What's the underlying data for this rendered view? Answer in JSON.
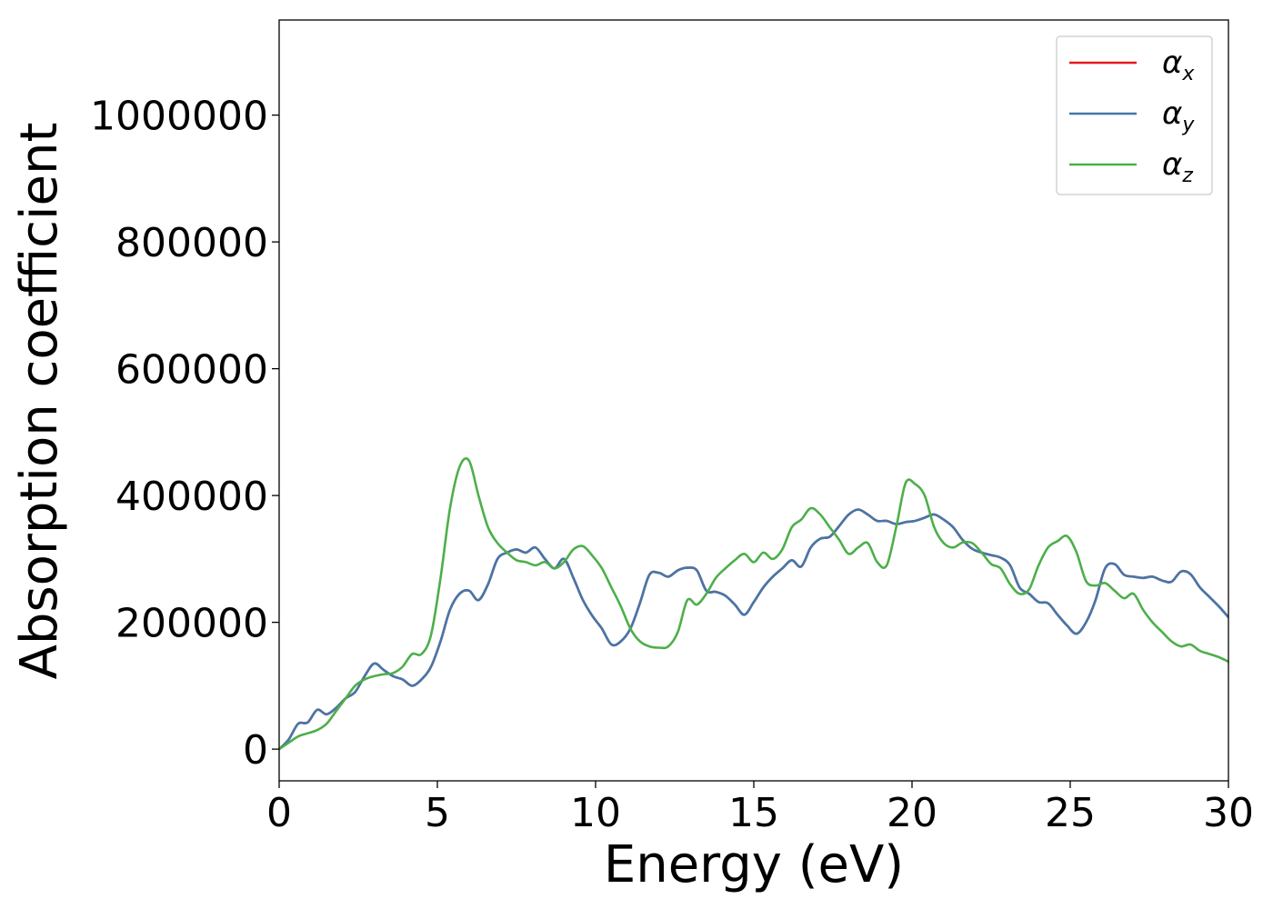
{
  "chart_data": {
    "type": "line",
    "title": "",
    "xlabel": "Energy (eV)",
    "ylabel": "Absorption coefficient",
    "xlim": [
      0,
      30
    ],
    "ylim": [
      -50000,
      1150000
    ],
    "xticks": [
      0,
      5,
      10,
      15,
      20,
      25,
      30
    ],
    "xtick_labels": [
      "0",
      "5",
      "10",
      "15",
      "20",
      "25",
      "30"
    ],
    "yticks": [
      0,
      200000,
      400000,
      600000,
      800000,
      1000000
    ],
    "ytick_labels": [
      "0",
      "200000",
      "400000",
      "600000",
      "800000",
      "1000000"
    ],
    "grid": false,
    "legend_position": "top-right",
    "series": [
      {
        "name": "α_x",
        "label_base": "α",
        "label_sub": "x",
        "color": "#e41a1c",
        "x": [
          0,
          0.3,
          0.6,
          0.9,
          1.2,
          1.5,
          1.8,
          2.1,
          2.4,
          2.7,
          3.0,
          3.3,
          3.6,
          3.9,
          4.2,
          4.5,
          4.8,
          5.1,
          5.4,
          5.7,
          6.0,
          6.3,
          6.6,
          6.9,
          7.2,
          7.5,
          7.8,
          8.1,
          8.4,
          8.7,
          9.0,
          9.3,
          9.6,
          9.9,
          10.2,
          10.5,
          10.8,
          11.1,
          11.4,
          11.7,
          12.0,
          12.3,
          12.6,
          12.9,
          13.2,
          13.5,
          13.8,
          14.1,
          14.4,
          14.7,
          15.0,
          15.3,
          15.6,
          15.9,
          16.2,
          16.5,
          16.8,
          17.1,
          17.4,
          17.7,
          18.0,
          18.3,
          18.6,
          18.9,
          19.2,
          19.5,
          19.8,
          20.1,
          20.4,
          20.7,
          21.0,
          21.3,
          21.6,
          21.9,
          22.2,
          22.5,
          22.8,
          23.1,
          23.4,
          23.7,
          24.0,
          24.3,
          24.6,
          24.9,
          25.2,
          25.5,
          25.8,
          26.1,
          26.4,
          26.7,
          27.0,
          27.3,
          27.6,
          27.9,
          28.2,
          28.5,
          28.8,
          29.1,
          29.4,
          29.7,
          30.0
        ],
        "values": [
          0,
          15000,
          40000,
          42000,
          62000,
          55000,
          65000,
          80000,
          90000,
          115000,
          135000,
          125000,
          115000,
          110000,
          100000,
          110000,
          130000,
          170000,
          220000,
          245000,
          250000,
          235000,
          260000,
          300000,
          310000,
          315000,
          310000,
          318000,
          300000,
          285000,
          300000,
          270000,
          235000,
          210000,
          190000,
          165000,
          170000,
          190000,
          230000,
          275000,
          278000,
          272000,
          282000,
          286000,
          282000,
          250000,
          248000,
          242000,
          228000,
          212000,
          232000,
          255000,
          272000,
          285000,
          298000,
          288000,
          318000,
          332000,
          335000,
          352000,
          370000,
          378000,
          370000,
          360000,
          360000,
          355000,
          358000,
          360000,
          365000,
          370000,
          362000,
          350000,
          330000,
          316000,
          310000,
          306000,
          302000,
          290000,
          255000,
          245000,
          232000,
          230000,
          212000,
          195000,
          182000,
          200000,
          235000,
          285000,
          292000,
          275000,
          272000,
          270000,
          272000,
          266000,
          264000,
          280000,
          276000,
          255000,
          240000,
          225000,
          208000
        ]
      },
      {
        "name": "α_y",
        "label_base": "α",
        "label_sub": "y",
        "color": "#4477aa",
        "x": [
          0,
          0.3,
          0.6,
          0.9,
          1.2,
          1.5,
          1.8,
          2.1,
          2.4,
          2.7,
          3.0,
          3.3,
          3.6,
          3.9,
          4.2,
          4.5,
          4.8,
          5.1,
          5.4,
          5.7,
          6.0,
          6.3,
          6.6,
          6.9,
          7.2,
          7.5,
          7.8,
          8.1,
          8.4,
          8.7,
          9.0,
          9.3,
          9.6,
          9.9,
          10.2,
          10.5,
          10.8,
          11.1,
          11.4,
          11.7,
          12.0,
          12.3,
          12.6,
          12.9,
          13.2,
          13.5,
          13.8,
          14.1,
          14.4,
          14.7,
          15.0,
          15.3,
          15.6,
          15.9,
          16.2,
          16.5,
          16.8,
          17.1,
          17.4,
          17.7,
          18.0,
          18.3,
          18.6,
          18.9,
          19.2,
          19.5,
          19.8,
          20.1,
          20.4,
          20.7,
          21.0,
          21.3,
          21.6,
          21.9,
          22.2,
          22.5,
          22.8,
          23.1,
          23.4,
          23.7,
          24.0,
          24.3,
          24.6,
          24.9,
          25.2,
          25.5,
          25.8,
          26.1,
          26.4,
          26.7,
          27.0,
          27.3,
          27.6,
          27.9,
          28.2,
          28.5,
          28.8,
          29.1,
          29.4,
          29.7,
          30.0
        ],
        "values": [
          0,
          15000,
          40000,
          42000,
          62000,
          55000,
          65000,
          80000,
          90000,
          115000,
          135000,
          125000,
          115000,
          110000,
          100000,
          110000,
          130000,
          170000,
          220000,
          245000,
          250000,
          235000,
          260000,
          300000,
          310000,
          315000,
          310000,
          318000,
          300000,
          285000,
          300000,
          270000,
          235000,
          210000,
          190000,
          165000,
          170000,
          190000,
          230000,
          275000,
          278000,
          272000,
          282000,
          286000,
          282000,
          250000,
          248000,
          242000,
          228000,
          212000,
          232000,
          255000,
          272000,
          285000,
          298000,
          288000,
          318000,
          332000,
          335000,
          352000,
          370000,
          378000,
          370000,
          360000,
          360000,
          355000,
          358000,
          360000,
          365000,
          370000,
          362000,
          350000,
          330000,
          316000,
          310000,
          306000,
          302000,
          290000,
          255000,
          245000,
          232000,
          230000,
          212000,
          195000,
          182000,
          200000,
          235000,
          285000,
          292000,
          275000,
          272000,
          270000,
          272000,
          266000,
          264000,
          280000,
          276000,
          255000,
          240000,
          225000,
          208000
        ]
      },
      {
        "name": "α_z",
        "label_base": "α",
        "label_sub": "z",
        "color": "#4daf4a",
        "x": [
          0,
          0.3,
          0.6,
          0.9,
          1.2,
          1.5,
          1.8,
          2.1,
          2.4,
          2.7,
          3.0,
          3.3,
          3.6,
          3.9,
          4.2,
          4.5,
          4.8,
          5.1,
          5.4,
          5.7,
          6.0,
          6.3,
          6.6,
          6.9,
          7.2,
          7.5,
          7.8,
          8.1,
          8.4,
          8.7,
          9.0,
          9.3,
          9.6,
          9.9,
          10.2,
          10.5,
          10.8,
          11.1,
          11.4,
          11.7,
          12.0,
          12.3,
          12.6,
          12.9,
          13.2,
          13.5,
          13.8,
          14.1,
          14.4,
          14.7,
          15.0,
          15.3,
          15.6,
          15.9,
          16.2,
          16.5,
          16.8,
          17.1,
          17.4,
          17.7,
          18.0,
          18.3,
          18.6,
          18.9,
          19.2,
          19.5,
          19.8,
          20.1,
          20.4,
          20.7,
          21.0,
          21.3,
          21.6,
          21.9,
          22.2,
          22.5,
          22.8,
          23.1,
          23.4,
          23.7,
          24.0,
          24.3,
          24.6,
          24.9,
          25.2,
          25.5,
          25.8,
          26.1,
          26.4,
          26.7,
          27.0,
          27.3,
          27.6,
          27.9,
          28.2,
          28.5,
          28.8,
          29.1,
          29.4,
          29.7,
          30.0
        ],
        "values": [
          0,
          10000,
          20000,
          25000,
          30000,
          40000,
          60000,
          80000,
          100000,
          110000,
          115000,
          118000,
          120000,
          130000,
          150000,
          150000,
          180000,
          270000,
          380000,
          445000,
          455000,
          400000,
          350000,
          325000,
          310000,
          298000,
          295000,
          290000,
          295000,
          285000,
          295000,
          315000,
          320000,
          305000,
          285000,
          255000,
          225000,
          190000,
          170000,
          162000,
          160000,
          162000,
          185000,
          235000,
          228000,
          245000,
          270000,
          285000,
          298000,
          308000,
          295000,
          310000,
          300000,
          315000,
          350000,
          362000,
          380000,
          370000,
          350000,
          330000,
          308000,
          318000,
          325000,
          295000,
          290000,
          350000,
          420000,
          418000,
          400000,
          350000,
          325000,
          318000,
          326000,
          325000,
          310000,
          292000,
          285000,
          260000,
          245000,
          252000,
          290000,
          318000,
          328000,
          336000,
          310000,
          265000,
          258000,
          262000,
          250000,
          238000,
          245000,
          220000,
          200000,
          185000,
          170000,
          162000,
          165000,
          155000,
          150000,
          145000,
          138000
        ]
      }
    ]
  }
}
